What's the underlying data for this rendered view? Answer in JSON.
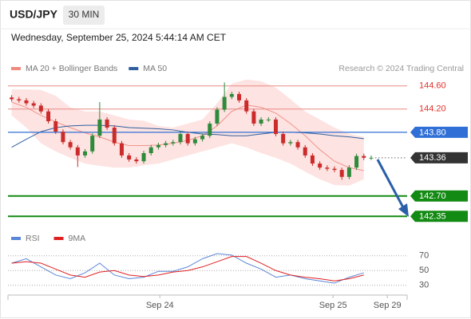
{
  "header": {
    "symbol": "USD/JPY",
    "timeframe": "30 MIN",
    "datetime": "Wednesday, September 25, 2024 5:44:14 AM CET",
    "credit": "Research © 2024 Trading Central"
  },
  "chart_data": [
    {
      "type": "candlestick",
      "legend": [
        {
          "name": "MA 20 + Bollinger Bands",
          "color": "#f08a80"
        },
        {
          "name": "MA 50",
          "color": "#2f5f9e"
        }
      ],
      "up_color": "#2f8a3b",
      "down_color": "#cc2b2b",
      "xlim": [
        -0.5,
        53.9
      ],
      "xticks": [
        {
          "value": 20.2,
          "label": "Sep 24"
        },
        {
          "value": 43.8,
          "label": "Sep 25"
        },
        {
          "value": 51.2,
          "label": "Sep 29"
        }
      ],
      "ylim": [
        142.16,
        144.72
      ],
      "candles": {
        "x": [
          0,
          1,
          2,
          3,
          4,
          5,
          6,
          7,
          8,
          9,
          10,
          11,
          12,
          13,
          14,
          15,
          16,
          17,
          18,
          19,
          20,
          21,
          22,
          23,
          24,
          25,
          26,
          27,
          28,
          29,
          30,
          31,
          32,
          33,
          34,
          35,
          36,
          37,
          38,
          39,
          40,
          41,
          42,
          43,
          44,
          45,
          46,
          47,
          48,
          49
        ],
        "open": [
          144.4,
          144.37,
          144.35,
          144.3,
          144.26,
          144.16,
          143.99,
          143.81,
          143.63,
          143.54,
          143.4,
          143.47,
          143.74,
          144.02,
          143.88,
          143.61,
          143.4,
          143.33,
          143.3,
          143.44,
          143.54,
          143.58,
          143.61,
          143.63,
          143.77,
          143.61,
          143.68,
          143.74,
          143.95,
          144.19,
          144.41,
          144.46,
          144.35,
          144.16,
          143.95,
          144.02,
          144.02,
          143.77,
          143.61,
          143.63,
          143.54,
          143.4,
          143.26,
          143.19,
          143.17,
          143.15,
          143.03,
          143.19,
          143.39,
          143.36
        ],
        "high": [
          144.44,
          144.41,
          144.39,
          144.34,
          144.3,
          144.2,
          144.03,
          143.85,
          143.67,
          143.58,
          143.51,
          143.78,
          144.32,
          144.06,
          143.92,
          143.65,
          143.44,
          143.37,
          143.48,
          143.58,
          143.62,
          143.65,
          143.67,
          143.81,
          143.81,
          143.72,
          143.78,
          143.99,
          144.23,
          144.66,
          144.5,
          144.5,
          144.39,
          144.2,
          144.06,
          144.06,
          144.06,
          143.81,
          143.67,
          143.67,
          143.58,
          143.44,
          143.3,
          143.23,
          143.21,
          143.19,
          143.23,
          143.43,
          143.43,
          143.4
        ],
        "low": [
          144.33,
          144.31,
          144.26,
          144.22,
          144.12,
          143.95,
          143.77,
          143.59,
          143.5,
          143.2,
          143.36,
          143.43,
          143.7,
          143.84,
          143.57,
          143.36,
          143.29,
          143.26,
          143.26,
          143.4,
          143.5,
          143.54,
          143.57,
          143.59,
          143.57,
          143.57,
          143.64,
          143.7,
          143.91,
          144.15,
          144.37,
          144.31,
          144.12,
          143.91,
          143.91,
          143.98,
          143.73,
          143.57,
          143.57,
          143.5,
          143.36,
          143.22,
          143.15,
          143.13,
          143.11,
          142.98,
          142.99,
          143.15,
          143.32,
          143.32
        ],
        "close": [
          144.37,
          144.35,
          144.3,
          144.26,
          144.16,
          143.99,
          143.81,
          143.63,
          143.54,
          143.4,
          143.47,
          143.74,
          144.02,
          143.88,
          143.61,
          143.4,
          143.33,
          143.3,
          143.44,
          143.54,
          143.58,
          143.61,
          143.63,
          143.77,
          143.61,
          143.68,
          143.74,
          143.95,
          144.19,
          144.41,
          144.46,
          144.35,
          144.16,
          143.95,
          144.02,
          144.02,
          143.77,
          143.61,
          143.63,
          143.54,
          143.4,
          143.26,
          143.19,
          143.17,
          143.15,
          143.03,
          143.19,
          143.39,
          143.36,
          143.36
        ]
      },
      "overlays": {
        "x": [
          0,
          2,
          4,
          6,
          8,
          10,
          12,
          14,
          16,
          18,
          20,
          22,
          24,
          26,
          28,
          30,
          32,
          34,
          36,
          38,
          40,
          42,
          44,
          46,
          48
        ],
        "band_color": "#fde3e1",
        "upper": [
          144.54,
          144.54,
          144.53,
          144.43,
          144.23,
          144.16,
          144.16,
          144.09,
          144.02,
          144.0,
          143.91,
          143.88,
          143.95,
          144.02,
          144.3,
          144.64,
          144.71,
          144.68,
          144.57,
          144.37,
          144.16,
          144.02,
          143.88,
          143.77,
          143.72
        ],
        "lower": [
          144.09,
          143.88,
          143.61,
          143.47,
          143.36,
          143.26,
          143.22,
          143.19,
          143.19,
          143.23,
          143.26,
          143.33,
          143.4,
          143.47,
          143.54,
          143.61,
          143.54,
          143.44,
          143.36,
          143.26,
          143.12,
          142.99,
          142.89,
          142.88,
          142.99
        ],
        "ma20": [
          144.32,
          144.23,
          144.09,
          143.98,
          143.88,
          143.79,
          143.72,
          143.63,
          143.57,
          143.57,
          143.58,
          143.61,
          143.66,
          143.74,
          143.91,
          144.16,
          144.27,
          144.23,
          144.13,
          143.95,
          143.74,
          143.5,
          143.3,
          143.19,
          143.14
        ],
        "ma50": [
          143.54,
          143.68,
          143.81,
          143.88,
          143.91,
          143.92,
          143.92,
          143.91,
          143.88,
          143.87,
          143.86,
          143.84,
          143.8,
          143.77,
          143.76,
          143.74,
          143.74,
          143.77,
          143.8,
          143.8,
          143.79,
          143.77,
          143.74,
          143.72,
          143.69
        ]
      },
      "levels": [
        {
          "value": 144.6,
          "label": "144.60",
          "color": "#e88a84",
          "style": "line"
        },
        {
          "value": 144.2,
          "label": "144.20",
          "color": "#e88a84",
          "style": "line"
        },
        {
          "value": 143.8,
          "label": "143.80",
          "color": "#2f6fd6",
          "style": "box"
        },
        {
          "value": 143.36,
          "label": "143.36",
          "color": "#333333",
          "style": "dotted"
        },
        {
          "value": 142.7,
          "label": "142.70",
          "color": "#138a13",
          "style": "box"
        },
        {
          "value": 142.35,
          "label": "142.35",
          "color": "#138a13",
          "style": "box"
        }
      ]
    },
    {
      "type": "line",
      "x": [
        0,
        2,
        4,
        6,
        8,
        10,
        12,
        14,
        16,
        18,
        20,
        22,
        24,
        26,
        28,
        30,
        32,
        34,
        36,
        38,
        40,
        42,
        44,
        46,
        48
      ],
      "xlim": [
        -0.5,
        53.9
      ],
      "ylim": [
        19,
        87
      ],
      "yticks": [
        30,
        50,
        70
      ],
      "series": [
        {
          "name": "RSI",
          "color": "#5a86d8",
          "values": [
            60,
            66,
            55,
            44,
            39,
            47,
            60,
            44,
            39,
            41,
            49,
            49,
            55,
            66,
            73,
            71,
            60,
            52,
            41,
            44,
            39,
            36,
            33,
            41,
            47
          ]
        },
        {
          "name": "9MA",
          "color": "#e02020",
          "values": [
            60,
            62,
            60,
            52,
            44,
            41,
            48,
            50,
            44,
            42,
            44,
            48,
            50,
            55,
            62,
            69,
            69,
            60,
            50,
            44,
            41,
            39,
            36,
            39,
            44
          ]
        }
      ]
    }
  ]
}
